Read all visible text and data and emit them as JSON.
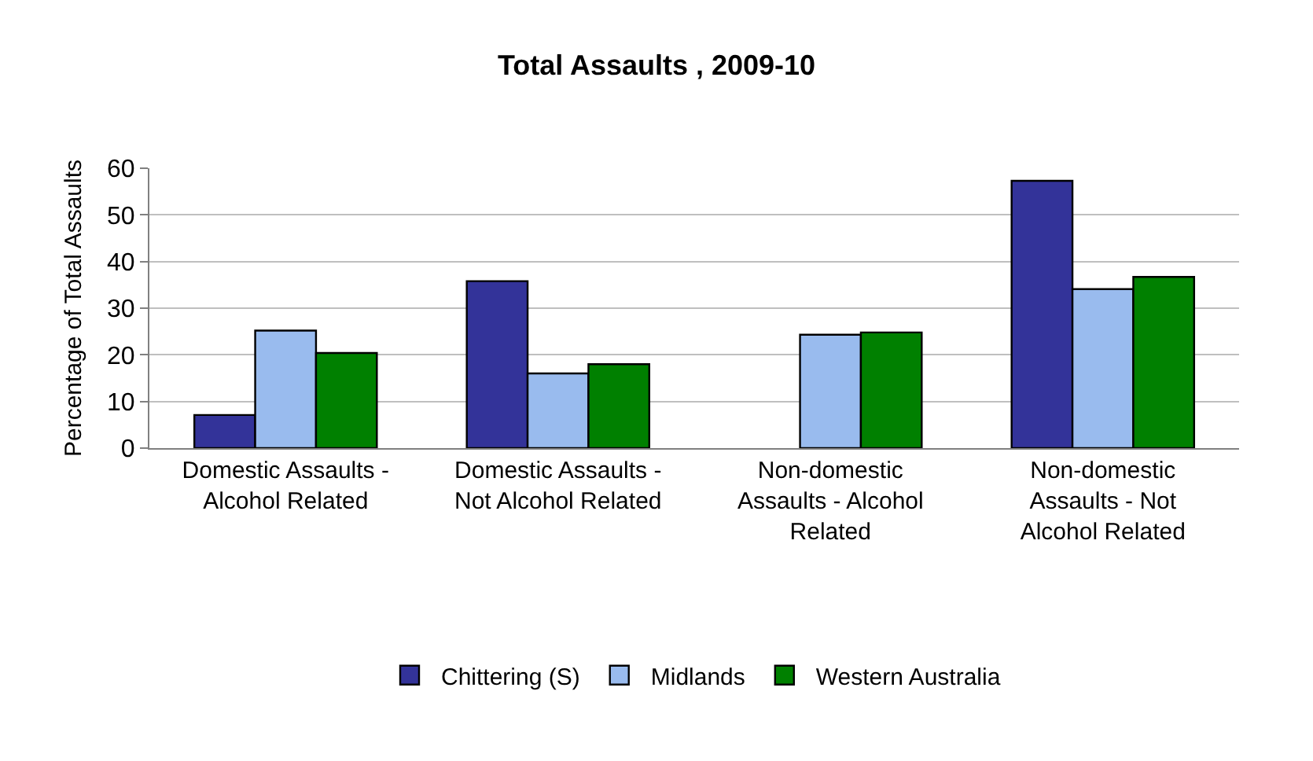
{
  "chart_data": {
    "type": "bar",
    "title": "Total Assaults , 2009-10",
    "ylabel": "Percentage of Total Assaults",
    "categories": [
      "Domestic Assaults - Alcohol Related",
      "Domestic Assaults - Not Alcohol Related",
      "Non-domestic Assaults - Alcohol Related",
      "Non-domestic Assaults - Not Alcohol Related"
    ],
    "series": [
      {
        "name": "Chittering (S)",
        "color": "#333399",
        "values": [
          7.1,
          35.8,
          null,
          57.3
        ]
      },
      {
        "name": "Midlands",
        "color": "#99bbee",
        "values": [
          25.2,
          16.0,
          24.3,
          34.1
        ]
      },
      {
        "name": "Western Australia",
        "color": "#008000",
        "values": [
          20.4,
          18.0,
          24.8,
          36.7
        ]
      }
    ],
    "ylim": [
      0,
      60
    ],
    "yticks": [
      0,
      10,
      20,
      30,
      40,
      50,
      60
    ],
    "grid": "y",
    "legend": "bottom"
  }
}
